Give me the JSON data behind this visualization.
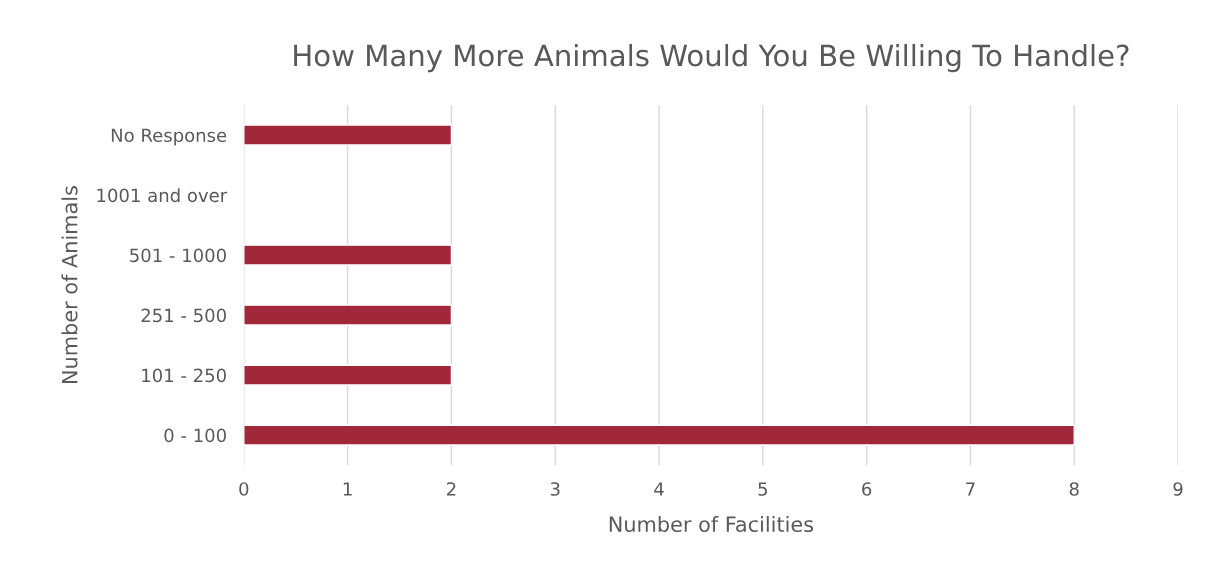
{
  "chart_data": {
    "type": "bar",
    "orientation": "horizontal",
    "title": "How Many More Animals Would You Be Willing To Handle?",
    "xlabel": "Number of Facilities",
    "ylabel": "Number of Animals",
    "categories": [
      "No Response",
      "1001 and over",
      "501 - 1000",
      "251 - 500",
      "101 - 250",
      "0 - 100"
    ],
    "values": [
      2,
      null,
      2,
      2,
      2,
      8
    ],
    "color": "#a0283a",
    "xlim": [
      0,
      9
    ],
    "xticks": [
      0,
      1,
      2,
      3,
      4,
      5,
      6,
      7,
      8,
      9
    ],
    "grid": "x",
    "legend": false
  }
}
